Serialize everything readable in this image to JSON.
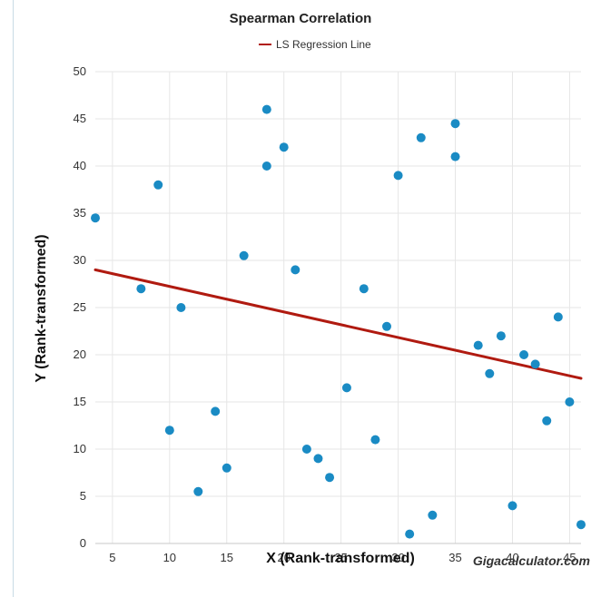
{
  "chart_data": {
    "type": "scatter",
    "title": "Spearman Correlation",
    "xlabel": "X (Rank-transformed)",
    "ylabel": "Y (Rank-transformed)",
    "xlim": [
      3.5,
      46
    ],
    "ylim": [
      0,
      50
    ],
    "xticks": [
      5,
      10,
      15,
      20,
      25,
      30,
      35,
      40,
      45
    ],
    "yticks": [
      0,
      5,
      10,
      15,
      20,
      25,
      30,
      35,
      40,
      45,
      50
    ],
    "grid": true,
    "legend_position": "top-center",
    "series": [
      {
        "name": "LS Regression Line",
        "kind": "line",
        "color": "#b01a10",
        "x": [
          3.5,
          46
        ],
        "y": [
          29,
          17.5
        ]
      },
      {
        "kind": "points",
        "color": "#1a8bc4",
        "x": [
          3.5,
          7.5,
          9,
          10,
          11,
          12.5,
          14,
          15,
          16.5,
          18.5,
          18.5,
          20,
          21,
          22,
          23,
          24,
          25.5,
          27,
          28,
          29,
          30,
          31,
          32,
          33,
          35,
          35,
          37,
          38,
          39,
          40,
          41,
          42,
          43,
          44,
          45,
          46
        ],
        "y": [
          34.5,
          27,
          38,
          12,
          25,
          5.5,
          14,
          8,
          30.5,
          46,
          40,
          42,
          29,
          10,
          9,
          7,
          16.5,
          27,
          11,
          23,
          39,
          1,
          43,
          3,
          44.5,
          41,
          21,
          18,
          22,
          4,
          20,
          19,
          13,
          24,
          15,
          2
        ]
      }
    ]
  },
  "credit": "Gigacalculator.com"
}
